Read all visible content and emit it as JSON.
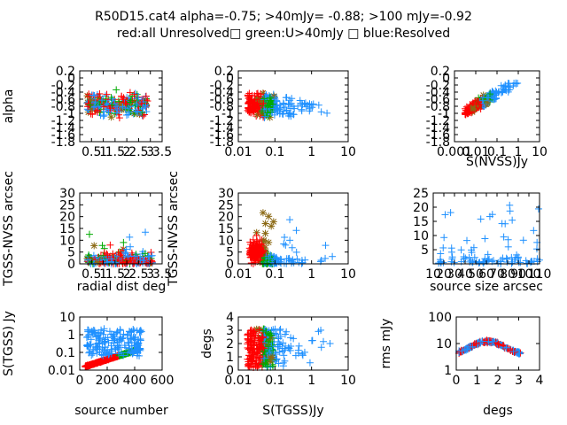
{
  "header": {
    "title_line1": "R50D15.cat4 alpha=-0.75; >40mJy= -0.88; >100 mJy=-0.92",
    "title_line2": "red:all Unresolved□ green:U>40mJy □ blue:Resolved"
  },
  "colors": {
    "red": "#ff0000",
    "green": "#00aa00",
    "blue": "#1e90ff",
    "olive": "#8b6914"
  },
  "chart_data": [
    {
      "type": "scatter",
      "id": "p1",
      "xlabel": "",
      "ylabel": "alpha",
      "xscale": "linear",
      "yscale": "linear",
      "xlim": [
        0,
        3.5
      ],
      "ylim": [
        -1.8,
        0.2
      ],
      "xticks": [
        "0.5",
        "1",
        "1.5",
        "2",
        "2.5",
        "3",
        "3.5"
      ],
      "yticks": [
        "0.2",
        "0",
        "-0.2",
        "-0.4",
        "-0.6",
        "-0.8",
        "-1",
        "-1.2",
        "-1.4",
        "-1.6",
        "-1.8"
      ]
    },
    {
      "type": "scatter",
      "id": "p2",
      "xlabel": "",
      "ylabel": "",
      "xscale": "log",
      "yscale": "linear",
      "xlim": [
        0.01,
        10
      ],
      "ylim": [
        -1.8,
        0.2
      ],
      "xticks": [
        "0.01",
        "0.1",
        "1",
        "10"
      ],
      "yticks": [
        "0.2",
        "0",
        "-0.2",
        "-0.4",
        "-0.6",
        "-0.8",
        "-1",
        "-1.2",
        "-1.4",
        "-1.6",
        "-1.8"
      ]
    },
    {
      "type": "scatter",
      "id": "p3",
      "xlabel": "S(NVSS)Jy",
      "ylabel": "",
      "xscale": "log",
      "yscale": "linear",
      "xlim": [
        0.001,
        10
      ],
      "ylim": [
        -1.8,
        0.2
      ],
      "xticks": [
        "0.001",
        "0.01",
        "0.1",
        "1",
        "10"
      ],
      "yticks": [
        "0.2",
        "0",
        "-0.2",
        "-0.4",
        "-0.6",
        "-0.8",
        "-1",
        "-1.2",
        "-1.4",
        "-1.6",
        "-1.8"
      ]
    },
    {
      "type": "scatter",
      "id": "p4",
      "xlabel": "radial dist deg",
      "ylabel": "TGSS-NVSS arcsec",
      "xscale": "linear",
      "yscale": "linear",
      "xlim": [
        0,
        3.5
      ],
      "ylim": [
        0,
        30
      ],
      "xticks": [
        "0.5",
        "1",
        "1.5",
        "2",
        "2.5",
        "3",
        "3.5"
      ],
      "yticks": [
        "30",
        "25",
        "20",
        "15",
        "10",
        "5",
        "0"
      ]
    },
    {
      "type": "scatter",
      "id": "p5",
      "xlabel": "",
      "ylabel": "TGSS-NVSS arcsec",
      "xscale": "log",
      "yscale": "linear",
      "xlim": [
        0.01,
        10
      ],
      "ylim": [
        0,
        30
      ],
      "xticks": [
        "0.01",
        "0.1",
        "1",
        "10"
      ],
      "yticks": [
        "30",
        "25",
        "20",
        "15",
        "10",
        "5",
        "0"
      ]
    },
    {
      "type": "scatter",
      "id": "p6",
      "xlabel": "source size arcsec",
      "ylabel": "",
      "xscale": "linear",
      "yscale": "linear",
      "xlim": [
        10,
        110
      ],
      "ylim": [
        0,
        25
      ],
      "xticks": [
        "10",
        "20",
        "30",
        "40",
        "50",
        "60",
        "70",
        "80",
        "90",
        "100",
        "110"
      ],
      "yticks": [
        "25",
        "20",
        "15",
        "10",
        "5"
      ]
    },
    {
      "type": "scatter",
      "id": "p7",
      "xlabel": "source number",
      "ylabel": "S(TGSS) Jy",
      "xscale": "linear",
      "yscale": "log",
      "xlim": [
        0,
        600
      ],
      "ylim": [
        0.01,
        10
      ],
      "xticks": [
        "0",
        "200",
        "400",
        "600"
      ],
      "yticks": [
        "10",
        "1",
        "0.1",
        "0.01"
      ]
    },
    {
      "type": "scatter",
      "id": "p8",
      "xlabel": "S(TGSS)Jy",
      "ylabel": "degs",
      "xscale": "log",
      "yscale": "linear",
      "xlim": [
        0.01,
        10
      ],
      "ylim": [
        0,
        4
      ],
      "xticks": [
        "0.01",
        "0.1",
        "1",
        "10"
      ],
      "yticks": [
        "4",
        "3",
        "2",
        "1",
        "0"
      ]
    },
    {
      "type": "scatter",
      "id": "p9",
      "xlabel": "degs",
      "ylabel": "rms mJy",
      "xscale": "linear",
      "yscale": "log",
      "xlim": [
        0,
        4
      ],
      "ylim": [
        1,
        100
      ],
      "xticks": [
        "0",
        "1",
        "2",
        "3",
        "4"
      ],
      "yticks": [
        "100",
        "10",
        "1"
      ]
    }
  ]
}
